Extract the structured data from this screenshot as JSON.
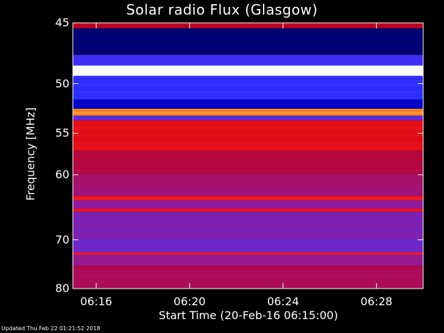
{
  "chart_data": {
    "type": "heatmap",
    "title": "Solar radio Flux (Glasgow)",
    "xlabel": "Start Time (20-Feb-16 06:15:00)",
    "ylabel": "Frequency [MHz]",
    "y_range": [
      45,
      80
    ],
    "y_ticks": [
      45,
      50,
      55,
      60,
      70,
      80
    ],
    "x_range": [
      "06:15:00",
      "06:30:00"
    ],
    "x_ticks": [
      "06:16",
      "06:20",
      "06:24",
      "06:28"
    ],
    "colorscale": [
      "#000030",
      "#0000c8",
      "#3030ff",
      "#6a2ad0",
      "#9a1890",
      "#c00018",
      "#ff1a1a",
      "#ff8c1a",
      "#ffe0a0",
      "#ffffff"
    ],
    "bands": [
      {
        "f0": 45.0,
        "f1": 45.4,
        "level": 0.55
      },
      {
        "f0": 45.4,
        "f1": 47.5,
        "level": 0.05
      },
      {
        "f0": 47.5,
        "f1": 48.4,
        "level": 0.25
      },
      {
        "f0": 48.4,
        "f1": 49.3,
        "level": 1.0
      },
      {
        "f0": 49.3,
        "f1": 51.5,
        "level": 0.22
      },
      {
        "f0": 51.5,
        "f1": 52.4,
        "level": 0.12
      },
      {
        "f0": 52.4,
        "f1": 53.1,
        "level": 0.78
      },
      {
        "f0": 53.1,
        "f1": 53.6,
        "level": 0.3
      },
      {
        "f0": 53.6,
        "f1": 57.0,
        "level": 0.62
      },
      {
        "f0": 57.0,
        "f1": 60.0,
        "level": 0.52
      },
      {
        "f0": 60.0,
        "f1": 63.0,
        "level": 0.47
      },
      {
        "f0": 63.0,
        "f1": 63.5,
        "level": 0.66
      },
      {
        "f0": 63.5,
        "f1": 64.8,
        "level": 0.42
      },
      {
        "f0": 64.8,
        "f1": 65.3,
        "level": 0.65
      },
      {
        "f0": 65.3,
        "f1": 70.0,
        "level": 0.38
      },
      {
        "f0": 70.0,
        "f1": 72.3,
        "level": 0.34
      },
      {
        "f0": 72.3,
        "f1": 72.7,
        "level": 0.64
      },
      {
        "f0": 72.7,
        "f1": 75.0,
        "level": 0.45
      },
      {
        "f0": 75.0,
        "f1": 80.0,
        "level": 0.5
      }
    ]
  },
  "updated": "Updated Thu Feb 22 01:21:52 2018"
}
